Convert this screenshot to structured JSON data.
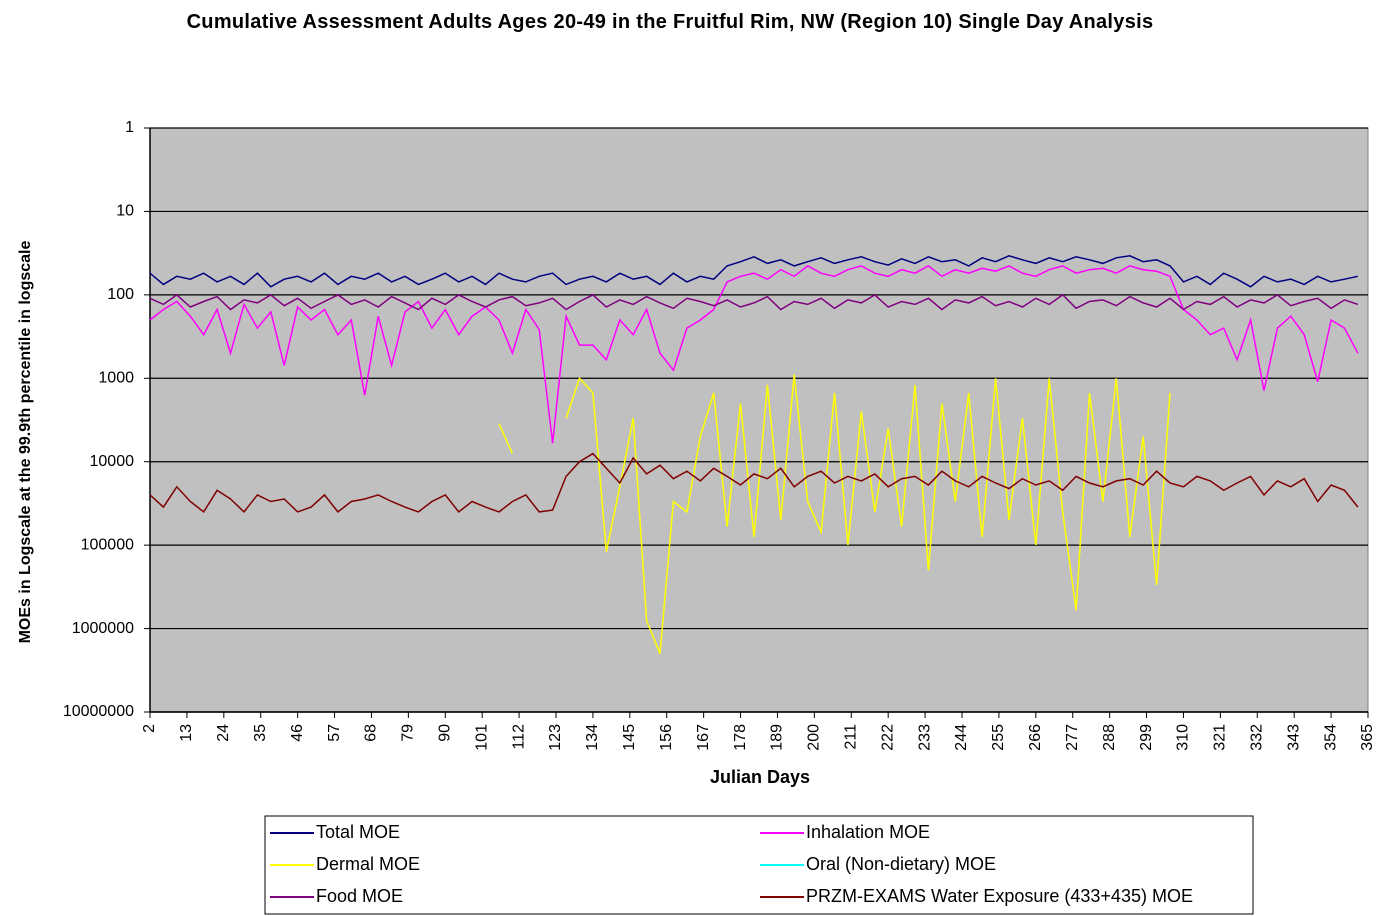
{
  "chart_data": {
    "type": "line",
    "title": "Cumulative Assessment Adults Ages 20-49 in the Fruitful Rim, NW (Region 10) Single Day Analysis",
    "xlabel": "Julian Days",
    "ylabel": "MOEs in Logscale at the 99.9th percentile in logscale",
    "log_scale": true,
    "y_inverted": true,
    "grid": true,
    "background": "#c0c0c0",
    "legend": "bottom",
    "xlim": [
      2,
      365
    ],
    "xticks": [
      2,
      13,
      24,
      35,
      46,
      57,
      68,
      79,
      90,
      101,
      112,
      123,
      134,
      145,
      156,
      167,
      178,
      189,
      200,
      211,
      222,
      233,
      244,
      255,
      266,
      277,
      288,
      299,
      310,
      321,
      332,
      343,
      354,
      365
    ],
    "ylim": [
      1,
      10000000
    ],
    "yticks": [
      1,
      10,
      100,
      1000,
      10000,
      100000,
      1000000,
      10000000
    ],
    "x": [
      2,
      6,
      10,
      14,
      18,
      22,
      26,
      30,
      34,
      38,
      42,
      46,
      50,
      54,
      58,
      62,
      66,
      70,
      74,
      78,
      82,
      86,
      90,
      94,
      98,
      102,
      106,
      110,
      114,
      118,
      122,
      126,
      130,
      134,
      138,
      142,
      146,
      150,
      154,
      158,
      162,
      166,
      170,
      174,
      178,
      182,
      186,
      190,
      194,
      198,
      202,
      206,
      210,
      214,
      218,
      222,
      226,
      230,
      234,
      238,
      242,
      246,
      250,
      254,
      258,
      262,
      266,
      270,
      274,
      278,
      282,
      286,
      290,
      294,
      298,
      302,
      306,
      310,
      314,
      318,
      322,
      326,
      330,
      334,
      338,
      342,
      346,
      350,
      354,
      358,
      362
    ],
    "series": [
      {
        "name": "Total MOE",
        "color": "#000080",
        "values": [
          55,
          75,
          60,
          65,
          55,
          70,
          60,
          75,
          55,
          80,
          65,
          60,
          70,
          55,
          75,
          60,
          65,
          55,
          70,
          60,
          75,
          65,
          55,
          70,
          60,
          75,
          55,
          65,
          70,
          60,
          55,
          75,
          65,
          60,
          70,
          55,
          65,
          60,
          75,
          55,
          70,
          60,
          65,
          45,
          40,
          35,
          42,
          38,
          45,
          40,
          36,
          42,
          38,
          35,
          40,
          44,
          37,
          42,
          35,
          40,
          38,
          45,
          36,
          40,
          34,
          38,
          42,
          36,
          40,
          35,
          38,
          42,
          36,
          34,
          40,
          38,
          45,
          70,
          60,
          75,
          55,
          65,
          80,
          60,
          70,
          65,
          75,
          60,
          70,
          65,
          60
        ]
      },
      {
        "name": "Inhalation MOE",
        "color": "#ff00ff",
        "values": [
          200,
          150,
          120,
          180,
          300,
          150,
          500,
          130,
          250,
          160,
          700,
          140,
          200,
          150,
          300,
          200,
          1600,
          180,
          700,
          160,
          120,
          250,
          150,
          300,
          180,
          140,
          200,
          500,
          150,
          260,
          6000,
          180,
          400,
          400,
          600,
          200,
          300,
          150,
          500,
          800,
          250,
          200,
          150,
          70,
          60,
          55,
          65,
          50,
          60,
          45,
          55,
          60,
          50,
          45,
          55,
          60,
          50,
          55,
          45,
          60,
          50,
          55,
          48,
          52,
          45,
          55,
          60,
          50,
          45,
          55,
          50,
          48,
          55,
          45,
          50,
          52,
          60,
          150,
          200,
          300,
          250,
          600,
          200,
          1400,
          250,
          180,
          300,
          1100,
          200,
          250,
          500
        ]
      },
      {
        "name": "Dermal MOE",
        "color": "#ffff00",
        "values": [
          null,
          null,
          null,
          null,
          null,
          null,
          null,
          null,
          null,
          null,
          null,
          null,
          null,
          null,
          null,
          null,
          null,
          null,
          null,
          null,
          null,
          null,
          null,
          null,
          null,
          null,
          3500,
          8000,
          null,
          null,
          null,
          3000,
          1000,
          1500,
          120000,
          20000,
          3000,
          800000,
          2000000,
          30000,
          40000,
          5000,
          1500,
          60000,
          2000,
          80000,
          1200,
          50000,
          900,
          30000,
          70000,
          1500,
          100000,
          2500,
          40000,
          4000,
          60000,
          1200,
          200000,
          2000,
          30000,
          1500,
          80000,
          1000,
          50000,
          3000,
          100000,
          1000,
          40000,
          600000,
          1500,
          30000,
          1000,
          80000,
          5000,
          300000,
          1500,
          null,
          null,
          null,
          null,
          null,
          null,
          null,
          null,
          null,
          null,
          null,
          null,
          null,
          null
        ]
      },
      {
        "name": "Oral (Non-dietary) MOE",
        "color": "#00ffff",
        "values": [
          null,
          null,
          null,
          null,
          null,
          null,
          null,
          null,
          null,
          null,
          null,
          null,
          null,
          null,
          null,
          null,
          null,
          null,
          null,
          null,
          null,
          null,
          null,
          null,
          null,
          null,
          null,
          null,
          null,
          null,
          null,
          null,
          null,
          null,
          null,
          null,
          null,
          null,
          null,
          null,
          null,
          null,
          null,
          null,
          null,
          null,
          null,
          null,
          null,
          null,
          null,
          null,
          null,
          null,
          null,
          null,
          null,
          null,
          null,
          null,
          null,
          null,
          null,
          null,
          null,
          null,
          null,
          null,
          null,
          null,
          null,
          null,
          null,
          null,
          null,
          null,
          null,
          null,
          null,
          null,
          null,
          null,
          null,
          null,
          null,
          null,
          null,
          null,
          null,
          null,
          null
        ]
      },
      {
        "name": "Food MOE",
        "color": "#800080",
        "values": [
          110,
          130,
          100,
          140,
          120,
          105,
          150,
          115,
          125,
          100,
          135,
          110,
          145,
          120,
          100,
          130,
          115,
          140,
          105,
          125,
          150,
          110,
          130,
          100,
          120,
          140,
          115,
          105,
          135,
          125,
          110,
          150,
          120,
          100,
          140,
          115,
          130,
          105,
          125,
          145,
          110,
          120,
          135,
          115,
          140,
          125,
          105,
          150,
          120,
          130,
          110,
          145,
          115,
          125,
          100,
          140,
          120,
          130,
          110,
          150,
          115,
          125,
          105,
          135,
          120,
          140,
          110,
          130,
          100,
          145,
          120,
          115,
          135,
          105,
          125,
          140,
          110,
          150,
          120,
          130,
          105,
          140,
          115,
          125,
          100,
          135,
          120,
          110,
          145,
          115,
          130
        ]
      },
      {
        "name": "PRZM-EXAMS Water Exposure (433+435) MOE",
        "color": "#800000",
        "values": [
          25000,
          35000,
          20000,
          30000,
          40000,
          22000,
          28000,
          40000,
          25000,
          30000,
          28000,
          40000,
          35000,
          25000,
          40000,
          30000,
          28000,
          25000,
          30000,
          35000,
          40000,
          30000,
          25000,
          40000,
          30000,
          35000,
          40000,
          30000,
          25000,
          40000,
          38000,
          15000,
          10000,
          8000,
          12000,
          18000,
          9000,
          14000,
          11000,
          16000,
          13000,
          17000,
          12000,
          15000,
          19000,
          14000,
          16000,
          12000,
          20000,
          15000,
          13000,
          18000,
          15000,
          17000,
          14000,
          20000,
          16000,
          15000,
          19000,
          13000,
          17000,
          20000,
          15000,
          18000,
          21000,
          16000,
          19000,
          17000,
          22000,
          15000,
          18000,
          20000,
          17000,
          16000,
          19000,
          13000,
          18000,
          20000,
          15000,
          17000,
          22000,
          18000,
          15000,
          25000,
          17000,
          20000,
          16000,
          30000,
          19000,
          22000,
          35000
        ]
      }
    ]
  }
}
